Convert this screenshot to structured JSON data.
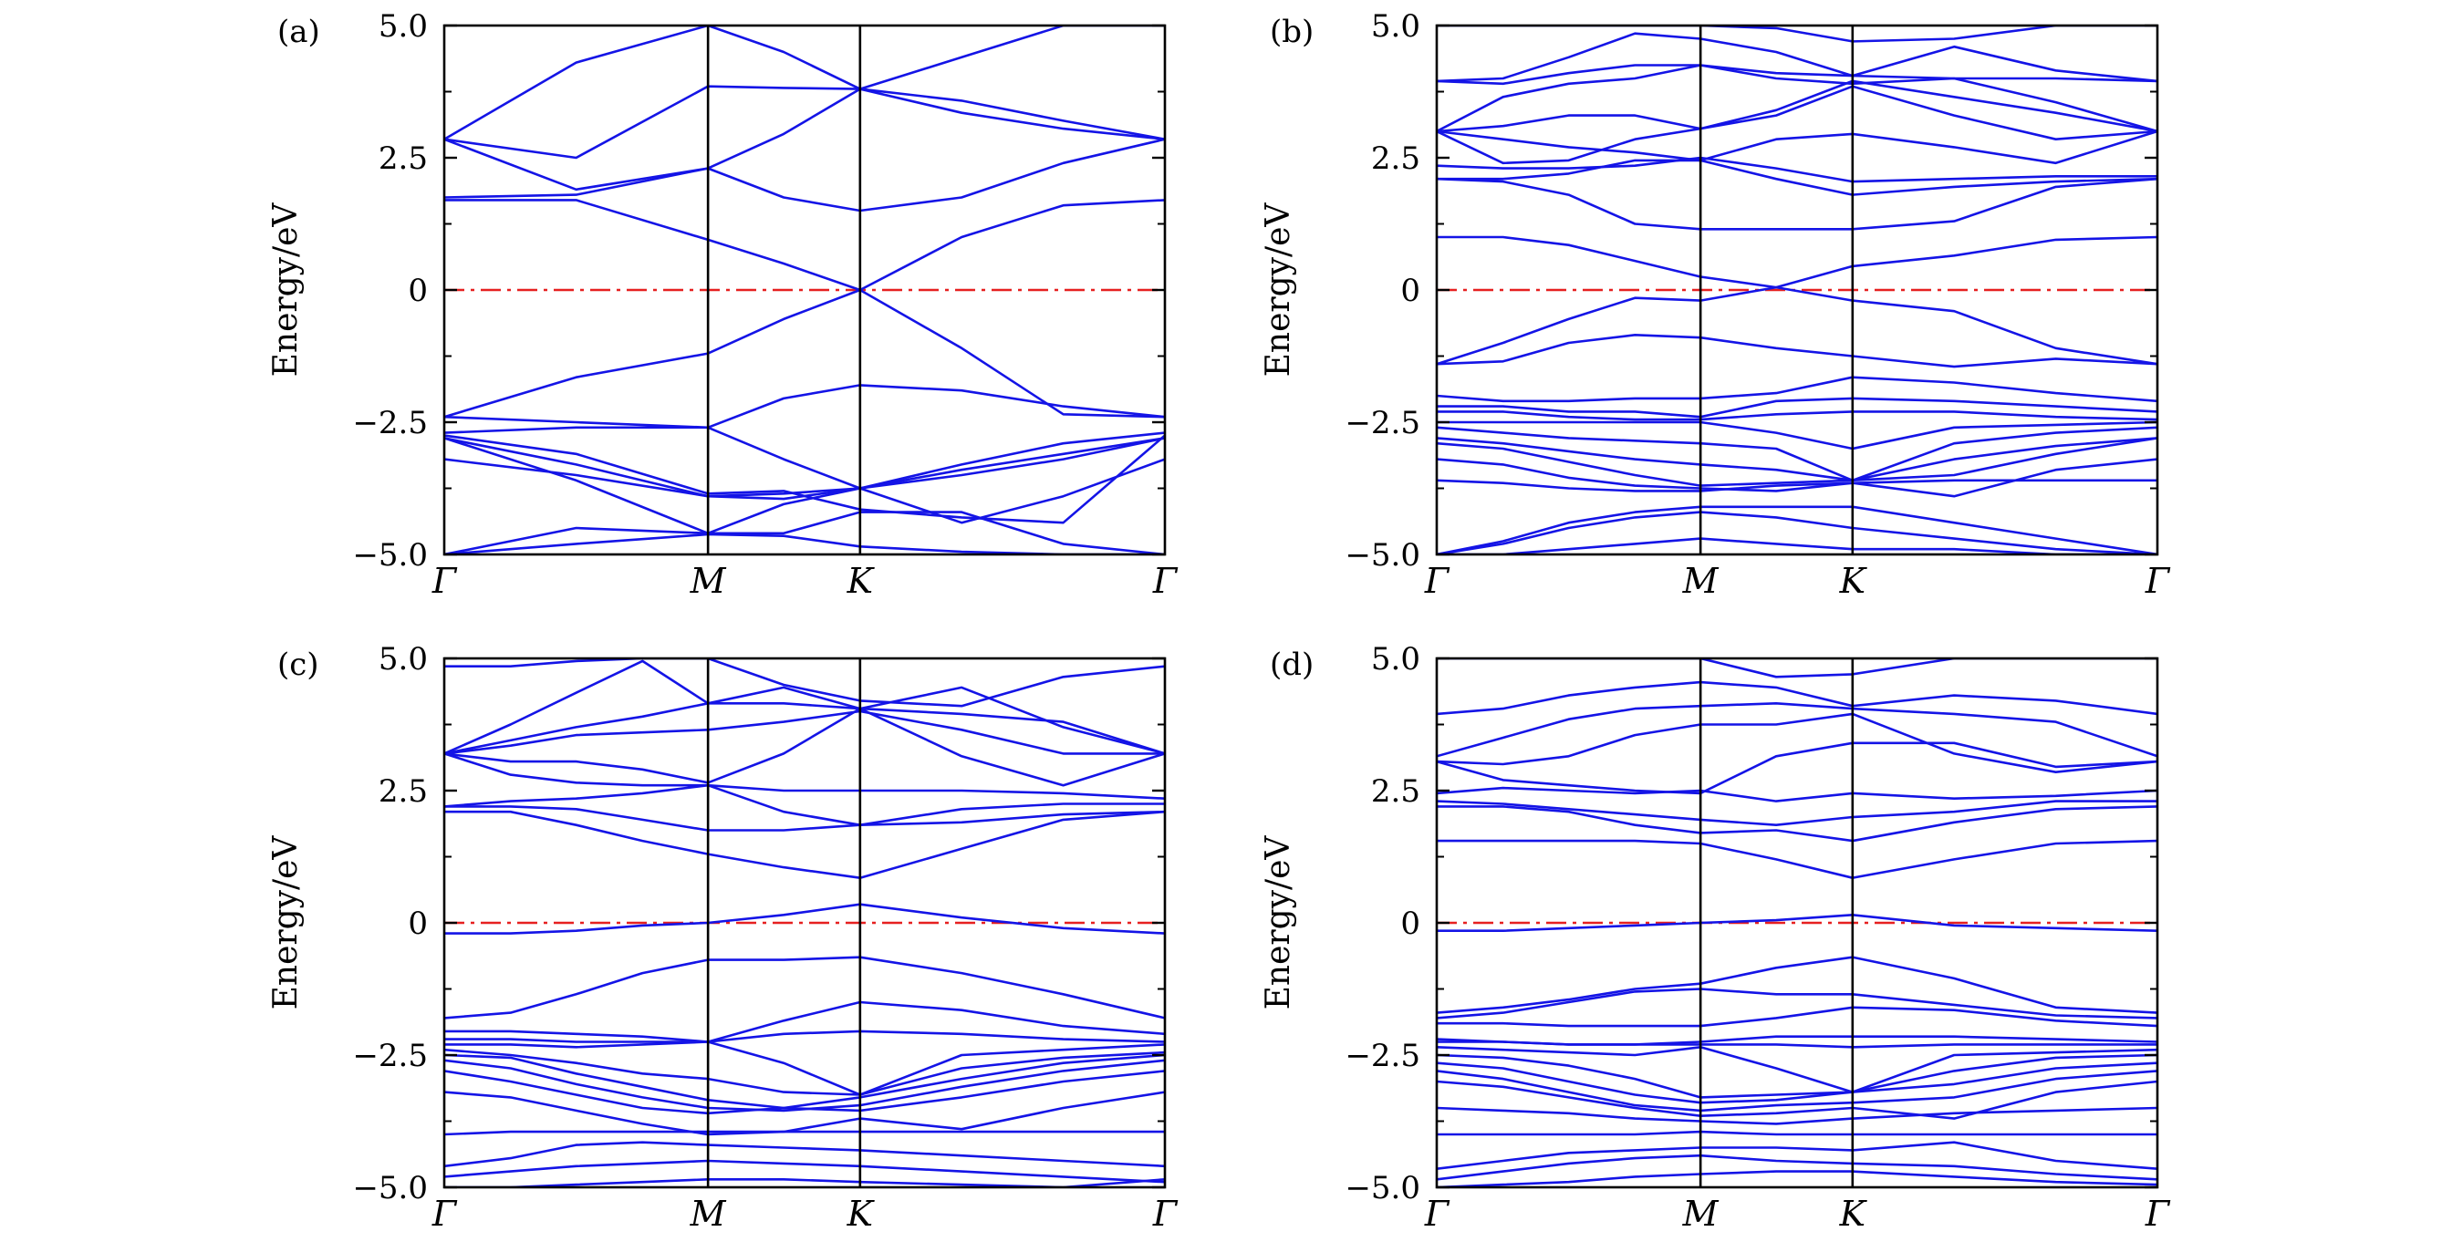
{
  "colors": {
    "band": "#1414e6",
    "fermi": "#e62020",
    "axis": "#000000"
  },
  "chart_data": [
    {
      "type": "line",
      "label": "(a)",
      "ylabel": "Energy/eV",
      "ylim": [
        -5,
        5
      ],
      "yticks": [
        -5,
        -2.5,
        0,
        2.5,
        5
      ],
      "ytick_labels": [
        "−5.0",
        "−2.5",
        "0",
        "2.5",
        "5.0"
      ],
      "kpoint_labels": [
        "Γ",
        "M",
        "K",
        "Γ"
      ],
      "kpoint_positions": [
        0,
        0.366,
        0.577,
        1.0
      ],
      "fermi_level": 0,
      "x": [
        0,
        0.183,
        0.366,
        0.471,
        0.577,
        0.718,
        0.859,
        1.0
      ],
      "bands": [
        [
          -5.0,
          -4.8,
          -4.62,
          -4.65,
          -4.85,
          -4.95,
          -5.0,
          -5.0
        ],
        [
          -5.0,
          -4.5,
          -4.6,
          -4.6,
          -4.2,
          -4.2,
          -4.8,
          -5.0
        ],
        [
          -3.2,
          -3.5,
          -3.9,
          -3.95,
          -3.75,
          -4.4,
          -3.9,
          -3.2
        ],
        [
          -2.8,
          -3.6,
          -4.6,
          -4.05,
          -3.75,
          -3.4,
          -3.1,
          -2.8
        ],
        [
          -2.8,
          -3.3,
          -3.9,
          -3.85,
          -3.75,
          -3.5,
          -3.2,
          -2.8
        ],
        [
          -2.75,
          -3.1,
          -3.85,
          -3.8,
          -4.15,
          -4.3,
          -4.4,
          -2.75
        ],
        [
          -2.7,
          -2.6,
          -2.6,
          -3.2,
          -3.75,
          -3.3,
          -2.9,
          -2.7
        ],
        [
          -2.4,
          -2.5,
          -2.6,
          -2.05,
          -1.8,
          -1.9,
          -2.2,
          -2.4
        ],
        [
          -2.4,
          -1.65,
          -1.2,
          -0.55,
          0.0,
          -1.1,
          -2.35,
          -2.4
        ],
        [
          1.7,
          1.7,
          0.95,
          0.5,
          0.0,
          1.0,
          1.6,
          1.7
        ],
        [
          1.75,
          1.8,
          2.3,
          1.75,
          1.5,
          1.75,
          2.4,
          2.85
        ],
        [
          2.85,
          1.9,
          2.3,
          2.95,
          3.8,
          3.35,
          3.05,
          2.85
        ],
        [
          2.85,
          2.5,
          3.85,
          3.82,
          3.8,
          3.58,
          3.2,
          2.85
        ],
        [
          2.85,
          4.3,
          5.2,
          4.5,
          3.8,
          4.4,
          5.2,
          5.3
        ]
      ]
    },
    {
      "type": "line",
      "label": "(b)",
      "ylabel": "Energy/eV",
      "ylim": [
        -5,
        5
      ],
      "yticks": [
        -5,
        -2.5,
        0,
        2.5,
        5
      ],
      "ytick_labels": [
        "−5.0",
        "−2.5",
        "0",
        "2.5",
        "5.0"
      ],
      "kpoint_labels": [
        "Γ",
        "M",
        "K",
        "Γ"
      ],
      "kpoint_positions": [
        0,
        0.366,
        0.577,
        1.0
      ],
      "fermi_level": 0,
      "x": [
        0,
        0.092,
        0.183,
        0.275,
        0.366,
        0.471,
        0.577,
        0.718,
        0.859,
        1.0
      ],
      "bands": [
        [
          -5.0,
          -4.8,
          -4.5,
          -4.3,
          -4.2,
          -4.3,
          -4.5,
          -4.7,
          -4.9,
          -5.0
        ],
        [
          -5.0,
          -4.75,
          -4.4,
          -4.2,
          -4.1,
          -4.1,
          -4.1,
          -4.4,
          -4.7,
          -5.0
        ],
        [
          -5.0,
          -5.0,
          -4.9,
          -4.8,
          -4.7,
          -4.8,
          -4.9,
          -4.9,
          -5.0,
          -5.0
        ],
        [
          -3.6,
          -3.65,
          -3.75,
          -3.8,
          -3.8,
          -3.7,
          -3.65,
          -3.6,
          -3.6,
          -3.6
        ],
        [
          -3.2,
          -3.3,
          -3.55,
          -3.7,
          -3.75,
          -3.8,
          -3.65,
          -3.9,
          -3.4,
          -3.2
        ],
        [
          -2.9,
          -3.0,
          -3.25,
          -3.5,
          -3.7,
          -3.65,
          -3.6,
          -3.5,
          -3.1,
          -2.8
        ],
        [
          -2.8,
          -2.9,
          -3.05,
          -3.2,
          -3.3,
          -3.4,
          -3.6,
          -3.2,
          -2.95,
          -2.8
        ],
        [
          -2.6,
          -2.7,
          -2.8,
          -2.85,
          -2.9,
          -3.0,
          -3.6,
          -2.9,
          -2.7,
          -2.6
        ],
        [
          -2.5,
          -2.5,
          -2.5,
          -2.5,
          -2.5,
          -2.7,
          -3.0,
          -2.6,
          -2.55,
          -2.5
        ],
        [
          -2.3,
          -2.3,
          -2.4,
          -2.45,
          -2.45,
          -2.35,
          -2.3,
          -2.3,
          -2.4,
          -2.45
        ],
        [
          -2.2,
          -2.2,
          -2.3,
          -2.3,
          -2.4,
          -2.1,
          -2.05,
          -2.1,
          -2.2,
          -2.3
        ],
        [
          -2.0,
          -2.1,
          -2.1,
          -2.05,
          -2.05,
          -1.95,
          -1.65,
          -1.75,
          -1.95,
          -2.1
        ],
        [
          -1.4,
          -1.35,
          -1.0,
          -0.85,
          -0.9,
          -1.1,
          -1.25,
          -1.45,
          -1.3,
          -1.4
        ],
        [
          -1.4,
          -1.0,
          -0.55,
          -0.15,
          -0.2,
          0.05,
          -0.2,
          -0.4,
          -1.1,
          -1.4
        ],
        [
          1.0,
          1.0,
          0.85,
          0.55,
          0.25,
          0.05,
          0.45,
          0.65,
          0.95,
          1.0
        ],
        [
          2.1,
          2.05,
          1.8,
          1.25,
          1.15,
          1.15,
          1.15,
          1.3,
          1.95,
          2.1
        ],
        [
          2.1,
          2.1,
          2.2,
          2.45,
          2.45,
          2.1,
          1.8,
          1.95,
          2.05,
          2.1
        ],
        [
          2.35,
          2.3,
          2.3,
          2.35,
          2.5,
          2.3,
          2.05,
          2.1,
          2.15,
          2.15
        ],
        [
          3.0,
          2.85,
          2.7,
          2.6,
          2.45,
          2.85,
          2.95,
          2.7,
          2.4,
          3.0
        ],
        [
          3.0,
          2.4,
          2.45,
          2.85,
          3.05,
          3.3,
          3.85,
          3.3,
          2.85,
          3.0
        ],
        [
          3.0,
          3.1,
          3.3,
          3.3,
          3.05,
          3.4,
          3.95,
          3.65,
          3.35,
          3.0
        ],
        [
          3.0,
          3.65,
          3.9,
          4.0,
          4.25,
          4.0,
          3.9,
          4.0,
          3.55,
          3.0
        ],
        [
          3.95,
          3.9,
          4.1,
          4.25,
          4.25,
          4.1,
          4.05,
          4.0,
          4.0,
          3.95
        ],
        [
          3.95,
          4.0,
          4.4,
          4.85,
          4.75,
          4.5,
          4.05,
          4.6,
          4.15,
          3.95
        ],
        [
          5.0,
          5.0,
          5.0,
          5.0,
          5.0,
          4.95,
          4.7,
          4.75,
          5.0,
          5.0
        ]
      ]
    },
    {
      "type": "line",
      "label": "(c)",
      "ylabel": "Energy/eV",
      "ylim": [
        -5,
        5
      ],
      "yticks": [
        -5,
        -2.5,
        0,
        2.5,
        5
      ],
      "ytick_labels": [
        "−5.0",
        "−2.5",
        "0",
        "2.5",
        "5.0"
      ],
      "kpoint_labels": [
        "Γ",
        "M",
        "K",
        "Γ"
      ],
      "kpoint_positions": [
        0,
        0.366,
        0.577,
        1.0
      ],
      "fermi_level": 0,
      "x": [
        0,
        0.092,
        0.183,
        0.275,
        0.366,
        0.471,
        0.577,
        0.718,
        0.859,
        1.0
      ],
      "bands": [
        [
          -5.0,
          -5.0,
          -4.95,
          -4.9,
          -4.85,
          -4.85,
          -4.9,
          -4.95,
          -5.0,
          -4.85
        ],
        [
          -4.8,
          -4.7,
          -4.6,
          -4.55,
          -4.5,
          -4.55,
          -4.6,
          -4.7,
          -4.8,
          -4.9
        ],
        [
          -4.6,
          -4.45,
          -4.2,
          -4.15,
          -4.2,
          -4.25,
          -4.3,
          -4.4,
          -4.5,
          -4.6
        ],
        [
          -4.0,
          -3.95,
          -3.95,
          -3.95,
          -3.95,
          -3.95,
          -3.95,
          -3.95,
          -3.95,
          -3.95
        ],
        [
          -3.2,
          -3.3,
          -3.55,
          -3.8,
          -4.0,
          -3.95,
          -3.7,
          -3.9,
          -3.5,
          -3.2
        ],
        [
          -2.8,
          -3.0,
          -3.25,
          -3.5,
          -3.6,
          -3.5,
          -3.55,
          -3.3,
          -3.0,
          -2.8
        ],
        [
          -2.6,
          -2.75,
          -3.05,
          -3.3,
          -3.5,
          -3.55,
          -3.45,
          -3.1,
          -2.8,
          -2.6
        ],
        [
          -2.5,
          -2.55,
          -2.85,
          -3.1,
          -3.35,
          -3.5,
          -3.3,
          -2.95,
          -2.65,
          -2.5
        ],
        [
          -2.4,
          -2.5,
          -2.65,
          -2.85,
          -2.95,
          -3.2,
          -3.25,
          -2.75,
          -2.55,
          -2.45
        ],
        [
          -2.3,
          -2.3,
          -2.35,
          -2.3,
          -2.25,
          -2.65,
          -3.25,
          -2.5,
          -2.4,
          -2.3
        ],
        [
          -2.2,
          -2.2,
          -2.25,
          -2.25,
          -2.25,
          -2.1,
          -2.05,
          -2.1,
          -2.2,
          -2.25
        ],
        [
          -2.05,
          -2.05,
          -2.1,
          -2.15,
          -2.25,
          -1.85,
          -1.5,
          -1.65,
          -1.95,
          -2.1
        ],
        [
          -1.8,
          -1.7,
          -1.35,
          -0.95,
          -0.7,
          -0.7,
          -0.65,
          -0.95,
          -1.35,
          -1.8
        ],
        [
          -0.2,
          -0.2,
          -0.15,
          -0.05,
          0.0,
          0.15,
          0.35,
          0.1,
          -0.1,
          -0.2
        ],
        [
          2.1,
          2.1,
          1.85,
          1.55,
          1.3,
          1.05,
          0.85,
          1.4,
          1.95,
          2.1
        ],
        [
          2.2,
          2.2,
          2.15,
          1.95,
          1.75,
          1.75,
          1.85,
          1.9,
          2.05,
          2.1
        ],
        [
          2.2,
          2.3,
          2.35,
          2.45,
          2.6,
          2.1,
          1.85,
          2.15,
          2.25,
          2.25
        ],
        [
          3.2,
          2.8,
          2.65,
          2.6,
          2.6,
          2.5,
          2.5,
          2.5,
          2.45,
          2.35
        ],
        [
          3.2,
          3.05,
          3.05,
          2.9,
          2.65,
          3.2,
          4.05,
          3.15,
          2.6,
          3.2
        ],
        [
          3.2,
          3.35,
          3.55,
          3.6,
          3.65,
          3.8,
          4.0,
          3.65,
          3.2,
          3.2
        ],
        [
          3.2,
          3.45,
          3.7,
          3.9,
          4.15,
          4.15,
          4.05,
          3.95,
          3.8,
          3.2
        ],
        [
          3.2,
          3.75,
          4.35,
          4.95,
          4.15,
          4.45,
          4.05,
          4.45,
          3.7,
          3.2
        ],
        [
          4.85,
          4.85,
          4.95,
          5.0,
          5.0,
          4.5,
          4.2,
          4.1,
          4.65,
          4.85
        ]
      ]
    },
    {
      "type": "line",
      "label": "(d)",
      "ylabel": "Energy/eV",
      "ylim": [
        -5,
        5
      ],
      "yticks": [
        -5,
        -2.5,
        0,
        2.5,
        5
      ],
      "ytick_labels": [
        "−5.0",
        "−2.5",
        "0",
        "2.5",
        "5.0"
      ],
      "kpoint_labels": [
        "Γ",
        "M",
        "K",
        "Γ"
      ],
      "kpoint_positions": [
        0,
        0.366,
        0.577,
        1.0
      ],
      "fermi_level": 0,
      "x": [
        0,
        0.092,
        0.183,
        0.275,
        0.366,
        0.471,
        0.577,
        0.718,
        0.859,
        1.0
      ],
      "bands": [
        [
          -5.0,
          -4.95,
          -4.9,
          -4.8,
          -4.75,
          -4.7,
          -4.7,
          -4.8,
          -4.9,
          -4.95
        ],
        [
          -4.85,
          -4.7,
          -4.55,
          -4.45,
          -4.4,
          -4.5,
          -4.55,
          -4.6,
          -4.75,
          -4.85
        ],
        [
          -4.65,
          -4.5,
          -4.35,
          -4.3,
          -4.25,
          -4.25,
          -4.3,
          -4.15,
          -4.5,
          -4.65
        ],
        [
          -4.0,
          -4.0,
          -4.0,
          -4.0,
          -3.95,
          -4.0,
          -4.0,
          -4.0,
          -4.0,
          -4.0
        ],
        [
          -3.5,
          -3.55,
          -3.6,
          -3.7,
          -3.75,
          -3.8,
          -3.7,
          -3.6,
          -3.55,
          -3.5
        ],
        [
          -3.0,
          -3.1,
          -3.3,
          -3.5,
          -3.65,
          -3.6,
          -3.5,
          -3.7,
          -3.2,
          -3.0
        ],
        [
          -2.8,
          -2.95,
          -3.2,
          -3.45,
          -3.55,
          -3.45,
          -3.4,
          -3.3,
          -2.95,
          -2.8
        ],
        [
          -2.65,
          -2.75,
          -3.0,
          -3.25,
          -3.4,
          -3.35,
          -3.2,
          -3.05,
          -2.75,
          -2.65
        ],
        [
          -2.5,
          -2.55,
          -2.7,
          -2.95,
          -3.3,
          -3.25,
          -3.2,
          -2.8,
          -2.55,
          -2.5
        ],
        [
          -2.35,
          -2.4,
          -2.45,
          -2.5,
          -2.35,
          -2.75,
          -3.2,
          -2.5,
          -2.45,
          -2.4
        ],
        [
          -2.25,
          -2.25,
          -2.3,
          -2.3,
          -2.3,
          -2.3,
          -2.35,
          -2.3,
          -2.3,
          -2.3
        ],
        [
          -2.2,
          -2.25,
          -2.3,
          -2.3,
          -2.25,
          -2.15,
          -2.15,
          -2.15,
          -2.2,
          -2.25
        ],
        [
          -1.9,
          -1.9,
          -1.95,
          -1.95,
          -1.95,
          -1.8,
          -1.6,
          -1.65,
          -1.85,
          -1.95
        ],
        [
          -1.8,
          -1.7,
          -1.5,
          -1.3,
          -1.25,
          -1.35,
          -1.35,
          -1.55,
          -1.75,
          -1.8
        ],
        [
          -1.7,
          -1.6,
          -1.45,
          -1.25,
          -1.15,
          -0.85,
          -0.65,
          -1.05,
          -1.6,
          -1.7
        ],
        [
          -0.15,
          -0.15,
          -0.1,
          -0.05,
          0.0,
          0.05,
          0.15,
          -0.05,
          -0.1,
          -0.15
        ],
        [
          1.55,
          1.55,
          1.55,
          1.55,
          1.5,
          1.2,
          0.85,
          1.2,
          1.5,
          1.55
        ],
        [
          2.2,
          2.2,
          2.1,
          1.85,
          1.7,
          1.75,
          1.55,
          1.9,
          2.15,
          2.2
        ],
        [
          2.3,
          2.25,
          2.15,
          2.05,
          1.95,
          1.85,
          2.0,
          2.1,
          2.3,
          2.3
        ],
        [
          2.45,
          2.55,
          2.5,
          2.45,
          2.5,
          2.3,
          2.45,
          2.35,
          2.4,
          2.5
        ],
        [
          3.05,
          2.7,
          2.6,
          2.5,
          2.45,
          3.15,
          3.4,
          3.4,
          2.95,
          3.05
        ],
        [
          3.05,
          3.0,
          3.15,
          3.55,
          3.75,
          3.75,
          3.95,
          3.2,
          2.85,
          3.05
        ],
        [
          3.15,
          3.5,
          3.85,
          4.05,
          4.1,
          4.15,
          4.05,
          3.95,
          3.8,
          3.15
        ],
        [
          3.95,
          4.05,
          4.3,
          4.45,
          4.55,
          4.45,
          4.1,
          4.3,
          4.2,
          3.95
        ],
        [
          5.0,
          5.0,
          5.0,
          5.0,
          5.0,
          4.65,
          4.7,
          5.0,
          5.0,
          5.0
        ]
      ]
    }
  ]
}
